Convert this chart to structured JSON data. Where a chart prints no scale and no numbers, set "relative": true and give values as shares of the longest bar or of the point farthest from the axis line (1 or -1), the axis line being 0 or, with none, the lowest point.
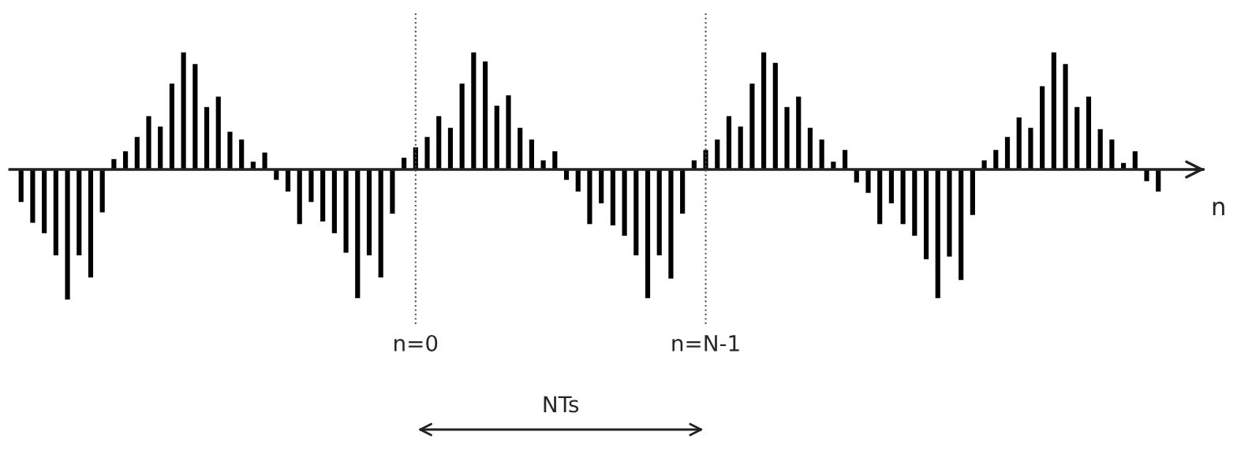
{
  "chart_data": {
    "type": "bar",
    "relative": true,
    "color": "#000000",
    "xlabel": "n",
    "categories": [
      null,
      null,
      null,
      null,
      null,
      null,
      null,
      null,
      null,
      null,
      null,
      null,
      null,
      null,
      null,
      null,
      null,
      null,
      null,
      null,
      null,
      null,
      null,
      null,
      null,
      null,
      null,
      null,
      null,
      null,
      null,
      null,
      null,
      null,
      "n=0",
      null,
      null,
      null,
      null,
      null,
      null,
      null,
      null,
      null,
      null,
      null,
      null,
      null,
      null,
      null,
      null,
      null,
      null,
      null,
      null,
      null,
      null,
      null,
      null,
      "n=N-1",
      null,
      null,
      null,
      null,
      null,
      null,
      null,
      null,
      null,
      null,
      null,
      null,
      null,
      null,
      null,
      null,
      null,
      null,
      null,
      null,
      null,
      null,
      null,
      null,
      null,
      null,
      null,
      null,
      null,
      null,
      null,
      null,
      null,
      null,
      null,
      null,
      null,
      null,
      null
    ],
    "values": [
      -0.25,
      -0.41,
      -0.49,
      -0.66,
      -1.0,
      -0.66,
      -0.83,
      -0.33,
      0.08,
      0.14,
      0.25,
      0.41,
      0.33,
      0.66,
      0.9,
      0.81,
      0.48,
      0.56,
      0.29,
      0.23,
      0.06,
      0.13,
      -0.08,
      -0.17,
      -0.42,
      -0.25,
      -0.4,
      -0.49,
      -0.64,
      -0.99,
      -0.66,
      -0.83,
      -0.34,
      0.09,
      0.17,
      0.25,
      0.41,
      0.32,
      0.66,
      0.9,
      0.83,
      0.49,
      0.57,
      0.32,
      0.23,
      0.07,
      0.14,
      -0.08,
      -0.17,
      -0.42,
      -0.26,
      -0.43,
      -0.51,
      -0.66,
      -0.99,
      -0.66,
      -0.84,
      -0.34,
      0.07,
      0.15,
      0.23,
      0.41,
      0.33,
      0.66,
      0.9,
      0.82,
      0.48,
      0.56,
      0.32,
      0.23,
      0.06,
      0.15,
      -0.1,
      -0.18,
      -0.42,
      -0.26,
      -0.42,
      -0.51,
      -0.69,
      -0.99,
      -0.67,
      -0.85,
      -0.35,
      0.07,
      0.15,
      0.25,
      0.4,
      0.32,
      0.64,
      0.9,
      0.81,
      0.48,
      0.56,
      0.31,
      0.23,
      0.05,
      0.14,
      -0.09,
      -0.17
    ],
    "ref_lines": [
      {
        "axis": "x",
        "value": "n=0",
        "line_style": "dotted",
        "color": "#555555"
      },
      {
        "axis": "x",
        "value": "n=N-1",
        "line_style": "dotted",
        "color": "#555555"
      }
    ],
    "annotations": [
      "NTs"
    ]
  }
}
